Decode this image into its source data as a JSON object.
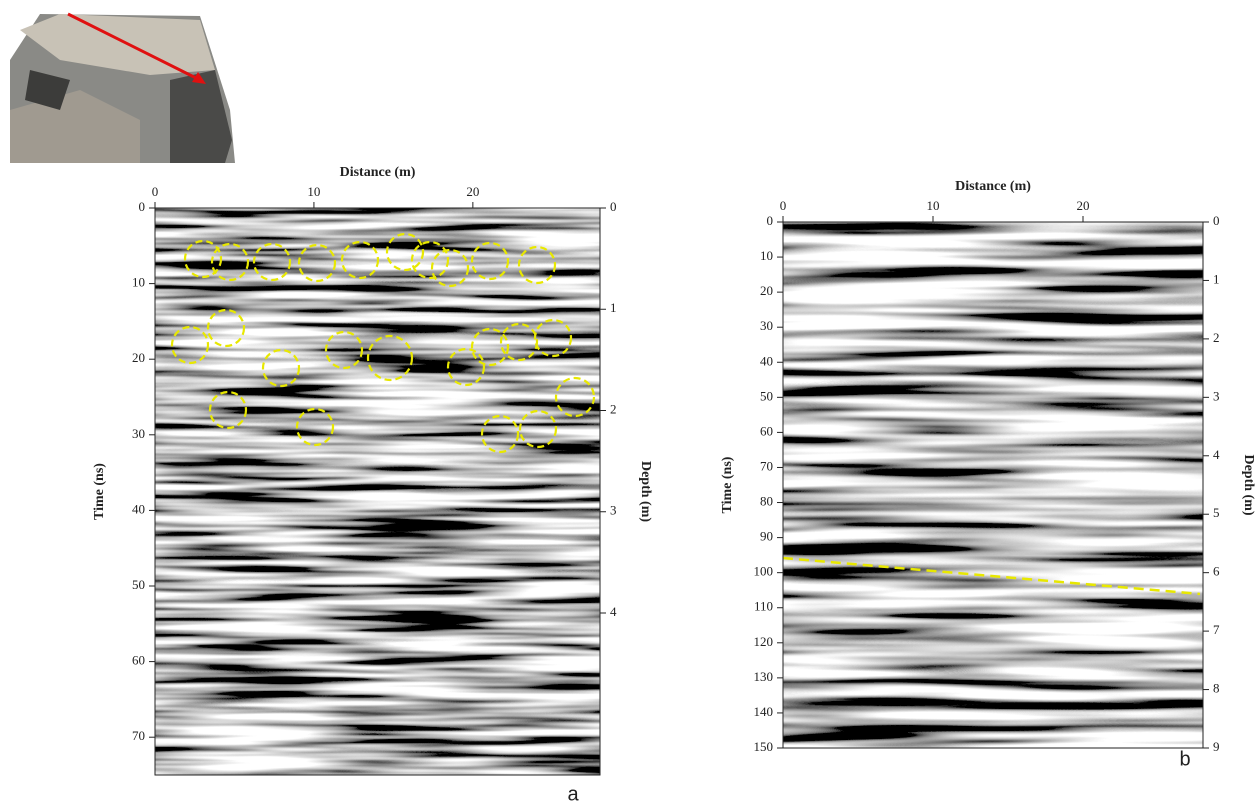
{
  "chart_data": [
    {
      "type": "radargram",
      "panel_label": "a",
      "x_label": "Distance (m)",
      "y_label": "Time (ns)",
      "y2_label": "Depth (m)",
      "xlim": [
        0,
        28
      ],
      "xticks": [
        0,
        10,
        20
      ],
      "ylim": [
        0,
        75
      ],
      "yticks": [
        0,
        10,
        20,
        30,
        40,
        50,
        60,
        70
      ],
      "y2lim": [
        0,
        5.6
      ],
      "y2ticks": [
        0,
        1,
        2,
        3,
        4
      ]
    },
    {
      "type": "radargram",
      "panel_label": "b",
      "x_label": "Distance  (m)",
      "y_label": "Time (ns)",
      "y2_label": "Depth (m)",
      "xlim": [
        0,
        28
      ],
      "xticks": [
        0,
        10,
        20
      ],
      "ylim": [
        0,
        150
      ],
      "yticks": [
        0,
        10,
        20,
        30,
        40,
        50,
        60,
        70,
        80,
        90,
        100,
        110,
        120,
        130,
        140,
        150
      ],
      "y2lim": [
        0,
        9
      ],
      "y2ticks": [
        0,
        1,
        2,
        3,
        4,
        5,
        6,
        7,
        8,
        9
      ]
    }
  ]
}
